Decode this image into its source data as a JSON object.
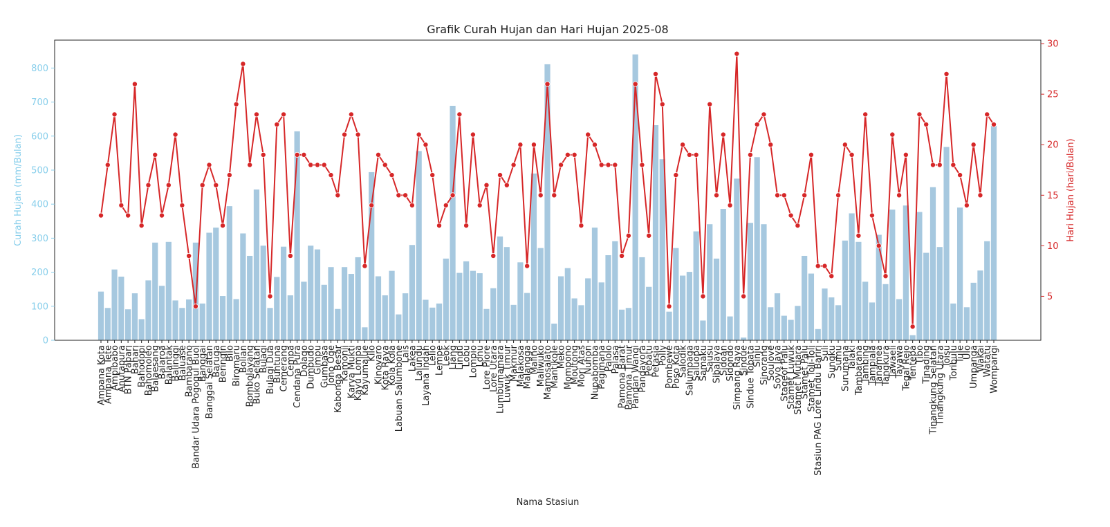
{
  "chart_data": {
    "type": "bar",
    "title": "Grafik Curah Hujan dan Hari Hujan 2025-08",
    "x_label": "Nama Stasiun",
    "y_label": "Curah Hujan (mm/Bulan)",
    "y2_label": "Hari Hujan (hari/Bulan)",
    "y_label_color": "#87ceeb",
    "y2_label_color": "#d62728",
    "categories": [
      "Ampana Kota",
      "Ampana Tete",
      "Ampibabo",
      "Anutapura",
      "BTN Pabari",
      "Bahari",
      "Bahodopi",
      "Bahomoleo",
      "Balaesang",
      "Balaroa",
      "Balantak",
      "Balinggi",
      "Baluase",
      "Bambarano",
      "Bandar Udara Pogogul Buol",
      "Banggai",
      "Banggai Selatan",
      "Baruga",
      "Beringin",
      "Bilo",
      "Biromaru",
      "Bolian",
      "Bombolayang",
      "Buko Selatan",
      "Bulagi",
      "Bulagi Dua",
      "Buntuna",
      "Cemerang",
      "Cempa",
      "Cendana Pura",
      "Dolago",
      "Dumbudo",
      "Gimpu",
      "Gumbasa",
      "Jono Oge",
      "Kabonga Besar",
      "Kamonji",
      "Karya Mukti",
      "Kayu Lompa",
      "Kayumalue",
      "Kilo",
      "Kinovaro",
      "Kota Raya",
      "Kola Kola",
      "Labuan Salumbone",
      "Lais",
      "Lakea",
      "Lalundu",
      "Layana Indah",
      "Lelio",
      "Lempe",
      "Leok",
      "Liang",
      "Lindu",
      "Lobu",
      "Lompio",
      "Lonu",
      "Lore Piore",
      "Lore Utara",
      "Lumbumamara",
      "Luwuk Timur",
      "Makmur",
      "Malakosa",
      "Malangga",
      "Malino",
      "Maliwuko",
      "Mamosalato",
      "Mantikole",
      "Meko",
      "Mompono",
      "Moutong",
      "Mori Atas",
      "Nuhon",
      "Nupabomba",
      "Pagimana",
      "Palolo",
      "Palasa",
      "Pamona Barat",
      "Pamona Timur",
      "Pandan Wangi",
      "Pandayora",
      "Pebatu",
      "Petasia",
      "Polly",
      "Pombewe",
      "Poso Kota",
      "Salodik",
      "Salumpaga",
      "Saluopa",
      "Samaku",
      "Sausu",
      "Sibalaya",
      "Sidoan",
      "Sidondo",
      "Simpang Raya",
      "Sindue",
      "Sindue Tobata",
      "Sinju",
      "Sinorang",
      "Soulove",
      "Soyo Jaya",
      "Stageof Palu",
      "Stamet Luwuk",
      "Stamet Mutiara",
      "Stamet Palu",
      "Stamet Toli-Toli",
      "Stasiun PAG Lore Lindu Bariri",
      "Suli",
      "Sungku",
      "Sumu",
      "Surumana",
      "Talaki",
      "Tambarana",
      "Tambing",
      "Tampiala",
      "Tanamea",
      "Tangkura",
      "Tawaeli",
      "Tayawa",
      "Tegal Rejo",
      "Tenteba",
      "Tibo",
      "Tinading",
      "Tinangkung Selatan",
      "Tinangkung Utara",
      "Toisu",
      "Toribulu",
      "Tule",
      "Ulo",
      "Umpanga",
      "Wakai",
      "Watatu",
      "Womparigi"
    ],
    "series": [
      {
        "type": "bar",
        "color": "#a6c8df",
        "values": [
          143,
          95,
          208,
          187,
          91,
          138,
          62,
          176,
          287,
          160,
          289,
          117,
          95,
          120,
          287,
          108,
          316,
          331,
          130,
          394,
          121,
          314,
          248,
          443,
          278,
          95,
          186,
          275,
          132,
          614,
          172,
          278,
          267,
          163,
          215,
          92,
          215,
          195,
          244,
          38,
          494,
          188,
          132,
          204,
          76,
          138,
          280,
          556,
          119,
          96,
          108,
          240,
          689,
          198,
          232,
          204,
          197,
          92,
          153,
          305,
          274,
          104,
          229,
          139,
          490,
          271,
          811,
          49,
          188,
          212,
          123,
          103,
          182,
          331,
          170,
          250,
          291,
          90,
          95,
          840,
          244,
          157,
          632,
          532,
          84,
          271,
          190,
          201,
          320,
          58,
          341,
          240,
          386,
          70,
          475,
          8,
          345,
          538,
          341,
          97,
          138,
          72,
          60,
          101,
          248,
          196,
          33,
          152,
          126,
          103,
          293,
          373,
          289,
          172,
          111,
          310,
          165,
          384,
          121,
          396,
          15,
          377,
          257,
          450,
          274,
          568,
          108,
          390,
          97,
          169,
          205,
          291,
          630
        ]
      },
      {
        "type": "line",
        "axis": "y2",
        "color": "#d62728",
        "values": [
          13,
          18,
          23,
          14,
          13,
          26,
          12,
          16,
          19,
          13,
          16,
          21,
          14,
          9,
          4,
          16,
          18,
          16,
          12,
          17,
          24,
          28,
          18,
          23,
          19,
          5,
          22,
          23,
          9,
          19,
          19,
          18,
          18,
          18,
          17,
          15,
          21,
          23,
          21,
          8,
          14,
          19,
          18,
          17,
          15,
          15,
          14,
          21,
          20,
          17,
          12,
          14,
          15,
          23,
          12,
          21,
          14,
          16,
          9,
          17,
          16,
          18,
          20,
          8,
          20,
          15,
          26,
          15,
          18,
          19,
          19,
          12,
          21,
          20,
          18,
          18,
          18,
          9,
          11,
          26,
          18,
          11,
          27,
          24,
          4,
          17,
          20,
          19,
          19,
          5,
          24,
          15,
          21,
          14,
          29,
          5,
          19,
          22,
          23,
          20,
          15,
          15,
          13,
          12,
          15,
          19,
          8,
          8,
          7,
          15,
          20,
          19,
          11,
          23,
          13,
          10,
          7,
          21,
          15,
          19,
          2,
          23,
          22,
          18,
          18,
          27,
          18,
          17,
          14,
          20,
          15,
          23,
          22
        ]
      }
    ],
    "ylim": [
      0,
      882
    ],
    "yticks": [
      0,
      100,
      200,
      300,
      400,
      500,
      600,
      700,
      800
    ],
    "y2lim": [
      0.65,
      30.35
    ],
    "y2ticks": [
      5,
      10,
      15,
      20,
      25,
      30
    ]
  }
}
